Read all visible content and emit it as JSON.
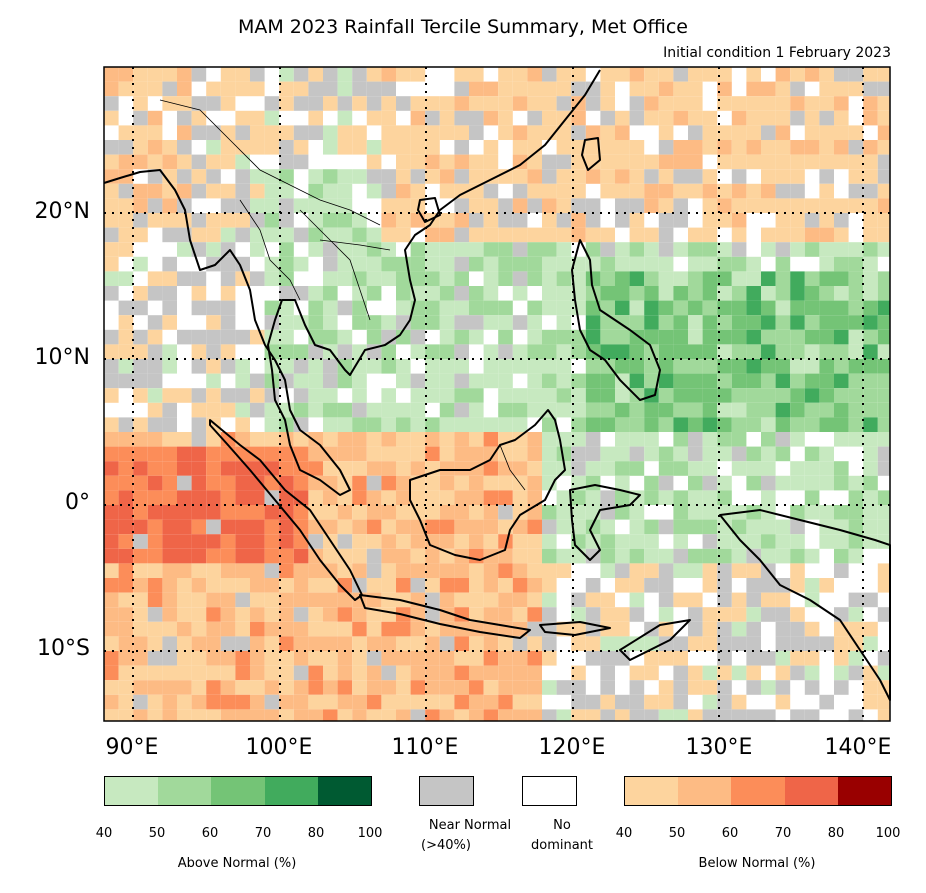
{
  "title": "MAM 2023 Rainfall Tercile Summary, Met Office",
  "subtitle": "Initial condition 1 February 2023",
  "map": {
    "lon_range": [
      87,
      141
    ],
    "lat_range": [
      -15,
      30
    ],
    "lat_labels": [
      "20°N",
      "10°N",
      "0°",
      "10°S"
    ],
    "lon_labels": [
      "90°E",
      "100°E",
      "110°E",
      "120°E",
      "130°E",
      "140°E"
    ],
    "gridlines": "dotted"
  },
  "legend": {
    "above": {
      "label": "Above Normal (%)",
      "ticks": [
        "40",
        "50",
        "60",
        "70",
        "80",
        "100"
      ],
      "colors": [
        "#c7e9c0",
        "#a1d99b",
        "#74c476",
        "#41ab5d",
        "#005a32"
      ]
    },
    "near_normal": {
      "label_line1": "Near Normal",
      "label_line2": "(>40%)",
      "color": "#c5c5c5"
    },
    "no_dominant": {
      "label_line1": "No",
      "label_line2": "dominant",
      "color": "#ffffff"
    },
    "below": {
      "label": "Below Normal (%)",
      "ticks": [
        "40",
        "50",
        "60",
        "70",
        "80",
        "100"
      ],
      "colors": [
        "#fdd49e",
        "#fdbb84",
        "#fc8d59",
        "#ef6548",
        "#990000"
      ]
    }
  }
}
